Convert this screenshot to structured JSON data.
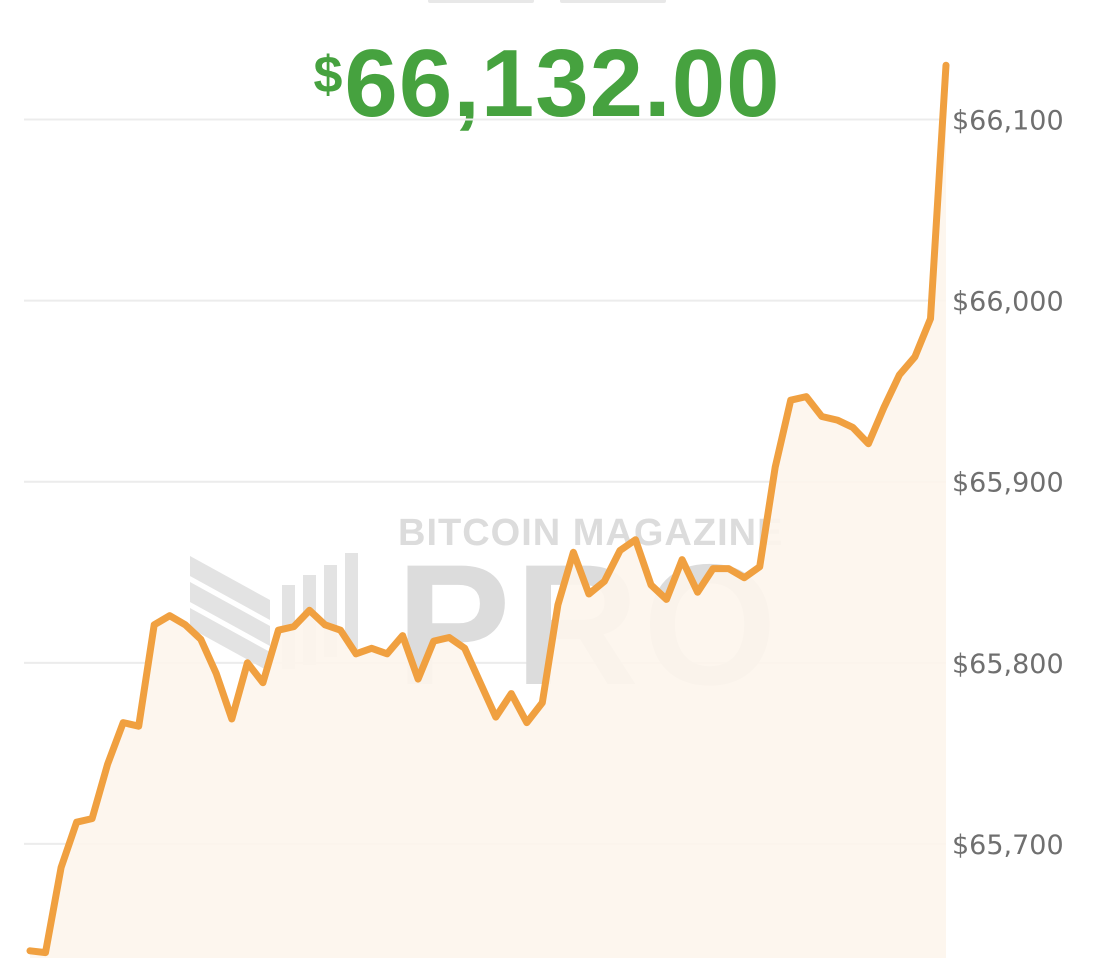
{
  "header": {
    "currency_symbol": "$",
    "price": "66,132.00",
    "price_color": "#46a23f"
  },
  "watermark": {
    "line1": "BITCOIN MAGAZINE",
    "line2": "PRO",
    "icon": "bitcoin-magazine-logo-icon",
    "color": "#dcdcdc"
  },
  "chart_data": {
    "type": "area",
    "title": "",
    "xlabel": "",
    "ylabel": "",
    "y_axis_position": "right",
    "grid": true,
    "legend": "none",
    "line_color": "#f0a040",
    "fill_color": "#fdf5ec",
    "ylim": [
      65637,
      66166
    ],
    "y_ticks": [
      66100,
      66000,
      65900,
      65800,
      65700
    ],
    "y_tick_labels": [
      "$66,100",
      "$66,000",
      "$65,900",
      "$65,800",
      "$65,700"
    ],
    "series": [
      {
        "values": [
          65641,
          65640,
          65687,
          65712,
          65714,
          65744,
          65767,
          65765,
          65821,
          65826,
          65821,
          65813,
          65794,
          65769,
          65800,
          65789,
          65818,
          65820,
          65829,
          65821,
          65818,
          65805,
          65808,
          65805,
          65815,
          65791,
          65812,
          65814,
          65808,
          65789,
          65770,
          65783,
          65767,
          65778,
          65832,
          65861,
          65838,
          65845,
          65862,
          65868,
          65843,
          65835,
          65857,
          65839,
          65852,
          65852,
          65847,
          65853,
          65908,
          65945,
          65947,
          65936,
          65934,
          65930,
          65921,
          65941,
          65959,
          65969,
          65990,
          66130
        ]
      }
    ]
  }
}
